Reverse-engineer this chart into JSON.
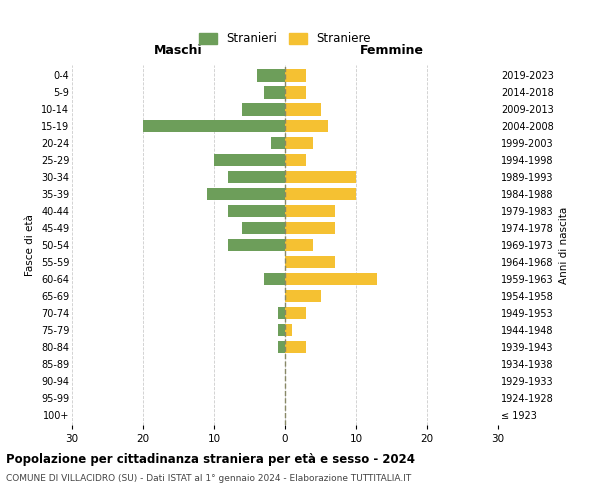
{
  "age_groups": [
    "0-4",
    "5-9",
    "10-14",
    "15-19",
    "20-24",
    "25-29",
    "30-34",
    "35-39",
    "40-44",
    "45-49",
    "50-54",
    "55-59",
    "60-64",
    "65-69",
    "70-74",
    "75-79",
    "80-84",
    "85-89",
    "90-94",
    "95-99",
    "100+"
  ],
  "birth_years": [
    "2019-2023",
    "2014-2018",
    "2009-2013",
    "2004-2008",
    "1999-2003",
    "1994-1998",
    "1989-1993",
    "1984-1988",
    "1979-1983",
    "1974-1978",
    "1969-1973",
    "1964-1968",
    "1959-1963",
    "1954-1958",
    "1949-1953",
    "1944-1948",
    "1939-1943",
    "1934-1938",
    "1929-1933",
    "1924-1928",
    "≤ 1923"
  ],
  "males": [
    4,
    3,
    6,
    20,
    2,
    10,
    8,
    11,
    8,
    6,
    8,
    0,
    3,
    0,
    1,
    1,
    1,
    0,
    0,
    0,
    0
  ],
  "females": [
    3,
    3,
    5,
    6,
    4,
    3,
    10,
    10,
    7,
    7,
    4,
    7,
    13,
    5,
    3,
    1,
    3,
    0,
    0,
    0,
    0
  ],
  "male_color": "#6d9e5a",
  "female_color": "#f5c132",
  "grid_color": "#cccccc",
  "center_line_color": "#888866",
  "title": "Popolazione per cittadinanza straniera per età e sesso - 2024",
  "subtitle": "COMUNE DI VILLACIDRO (SU) - Dati ISTAT al 1° gennaio 2024 - Elaborazione TUTTITALIA.IT",
  "ylabel_left": "Fasce di età",
  "ylabel_right": "Anni di nascita",
  "xlabel_left": "Maschi",
  "xlabel_right": "Femmine",
  "legend_male": "Stranieri",
  "legend_female": "Straniere",
  "xlim": 30,
  "bar_height": 0.75,
  "bg_color": "#ffffff"
}
